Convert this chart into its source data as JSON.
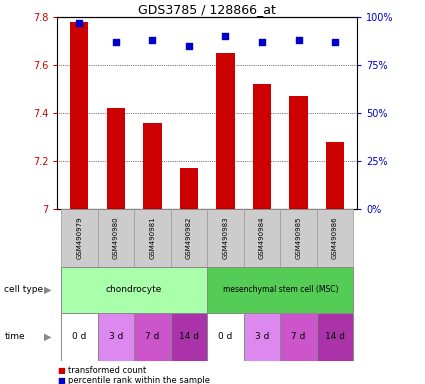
{
  "title": "GDS3785 / 128866_at",
  "samples": [
    "GSM490979",
    "GSM490980",
    "GSM490981",
    "GSM490982",
    "GSM490983",
    "GSM490984",
    "GSM490985",
    "GSM490986"
  ],
  "bar_values": [
    7.78,
    7.42,
    7.36,
    7.17,
    7.65,
    7.52,
    7.47,
    7.28
  ],
  "dot_values": [
    97,
    87,
    88,
    85,
    90,
    87,
    88,
    87
  ],
  "ylim": [
    7.0,
    7.8
  ],
  "yticks": [
    7.0,
    7.2,
    7.4,
    7.6,
    7.8
  ],
  "y2lim": [
    0,
    100
  ],
  "y2ticks": [
    0,
    25,
    50,
    75,
    100
  ],
  "y2ticklabels": [
    "0%",
    "25%",
    "50%",
    "75%",
    "100%"
  ],
  "bar_color": "#cc0000",
  "dot_color": "#0000cc",
  "cell_type_label_chondro": "chondrocyte",
  "cell_type_label_msc": "mesenchymal stem cell (MSC)",
  "time_labels": [
    "0 d",
    "3 d",
    "7 d",
    "14 d",
    "0 d",
    "3 d",
    "7 d",
    "14 d"
  ],
  "time_colors": [
    "#ffffff",
    "#dd88ee",
    "#cc55cc",
    "#aa33aa",
    "#ffffff",
    "#dd88ee",
    "#cc55cc",
    "#aa33aa"
  ],
  "cell_type_row_label": "cell type",
  "time_row_label": "time",
  "legend_bar_label": "transformed count",
  "legend_dot_label": "percentile rank within the sample",
  "tick_label_color_left": "#cc0000",
  "tick_label_color_right": "#0000cc",
  "bar_width": 0.5,
  "chondro_color": "#aaffaa",
  "msc_color": "#55cc55",
  "sample_bg_color": "#cccccc",
  "sample_border_color": "#999999"
}
